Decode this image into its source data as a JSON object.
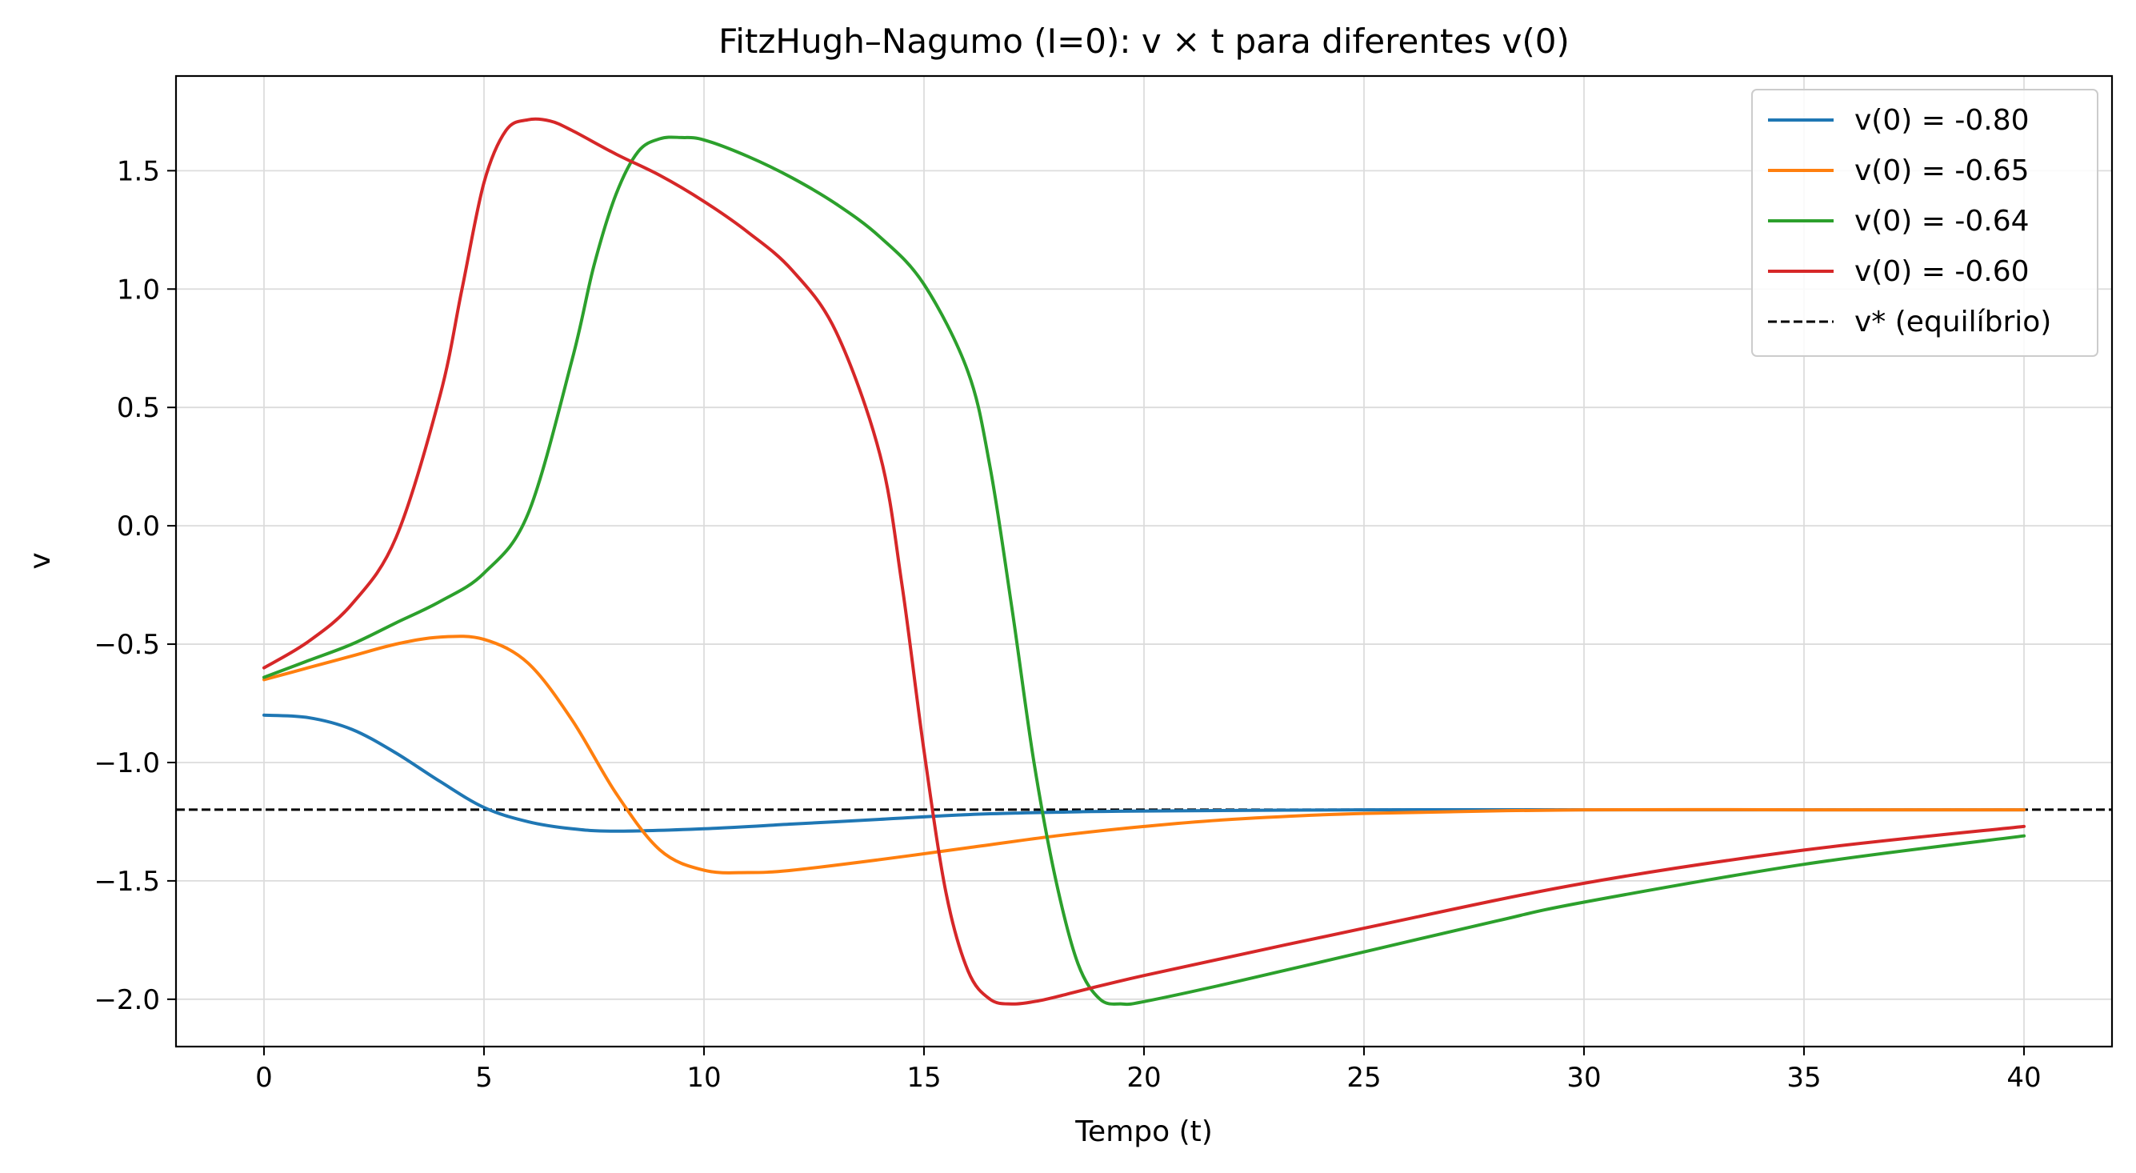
{
  "chart_data": {
    "type": "line",
    "title": "FitzHugh–Nagumo (I=0): v × t para diferentes v(0)",
    "xlabel": "Tempo (t)",
    "ylabel": "v",
    "xlim": [
      -2,
      42
    ],
    "ylim": [
      -2.2,
      1.9
    ],
    "xticks": [
      0,
      5,
      10,
      15,
      20,
      25,
      30,
      35,
      40
    ],
    "xtick_labels": [
      "0",
      "5",
      "10",
      "15",
      "20",
      "25",
      "30",
      "35",
      "40"
    ],
    "yticks": [
      -2.0,
      -1.5,
      -1.0,
      -0.5,
      0.0,
      0.5,
      1.0,
      1.5
    ],
    "ytick_labels": [
      "−2.0",
      "−1.5",
      "−1.0",
      "−0.5",
      "0.0",
      "0.5",
      "1.0",
      "1.5"
    ],
    "grid": true,
    "legend_position": "top-right",
    "series": [
      {
        "name": "v(0) = -0.80",
        "color": "#1f77b4",
        "x": [
          0,
          1,
          2,
          3,
          4,
          5,
          6,
          7,
          8,
          10,
          12,
          14,
          16,
          18,
          20,
          25,
          30,
          35,
          40
        ],
        "y": [
          -0.8,
          -0.81,
          -0.86,
          -0.96,
          -1.08,
          -1.19,
          -1.25,
          -1.28,
          -1.29,
          -1.28,
          -1.26,
          -1.24,
          -1.22,
          -1.21,
          -1.205,
          -1.2,
          -1.2,
          -1.2,
          -1.2
        ]
      },
      {
        "name": "v(0) = -0.65",
        "color": "#ff7f0e",
        "x": [
          0,
          1,
          2,
          3,
          4,
          5,
          6,
          7,
          8,
          9,
          10,
          11,
          12,
          14,
          16,
          18,
          20,
          22,
          25,
          30,
          35,
          40
        ],
        "y": [
          -0.65,
          -0.6,
          -0.55,
          -0.5,
          -0.47,
          -0.48,
          -0.58,
          -0.82,
          -1.13,
          -1.37,
          -1.455,
          -1.465,
          -1.455,
          -1.41,
          -1.36,
          -1.31,
          -1.27,
          -1.24,
          -1.215,
          -1.2,
          -1.2,
          -1.2
        ]
      },
      {
        "name": "v(0) = -0.64",
        "color": "#2ca02c",
        "x": [
          0,
          1,
          2,
          3,
          4,
          5,
          6,
          7,
          7.5,
          8,
          8.5,
          9,
          9.5,
          10,
          11,
          12,
          13,
          14,
          15,
          16,
          16.5,
          17,
          17.5,
          18,
          18.5,
          19,
          19.5,
          20,
          22,
          25,
          28,
          30,
          35,
          40
        ],
        "y": [
          -0.64,
          -0.57,
          -0.5,
          -0.41,
          -0.32,
          -0.2,
          0.05,
          0.7,
          1.1,
          1.4,
          1.58,
          1.635,
          1.64,
          1.63,
          1.56,
          1.47,
          1.36,
          1.22,
          1.02,
          0.65,
          0.25,
          -0.35,
          -1.0,
          -1.5,
          -1.85,
          -2.0,
          -2.02,
          -2.01,
          -1.93,
          -1.8,
          -1.67,
          -1.59,
          -1.43,
          -1.31
        ]
      },
      {
        "name": "v(0) = -0.60",
        "color": "#d62728",
        "x": [
          0,
          1,
          2,
          3,
          4,
          4.5,
          5,
          5.5,
          6,
          6.5,
          7,
          8,
          9,
          10,
          11,
          12,
          13,
          14,
          14.5,
          15,
          15.5,
          16,
          16.5,
          17,
          17.5,
          18,
          20,
          25,
          30,
          35,
          40
        ],
        "y": [
          -0.6,
          -0.49,
          -0.33,
          -0.05,
          0.55,
          1.0,
          1.45,
          1.67,
          1.715,
          1.71,
          1.67,
          1.57,
          1.48,
          1.37,
          1.24,
          1.08,
          0.82,
          0.3,
          -0.25,
          -0.95,
          -1.55,
          -1.88,
          -2.0,
          -2.02,
          -2.01,
          -1.99,
          -1.9,
          -1.7,
          -1.51,
          -1.37,
          -1.27
        ]
      }
    ],
    "equilibrium": {
      "name": "v* (equilíbrio)",
      "color": "#000000",
      "value": -1.199
    }
  }
}
